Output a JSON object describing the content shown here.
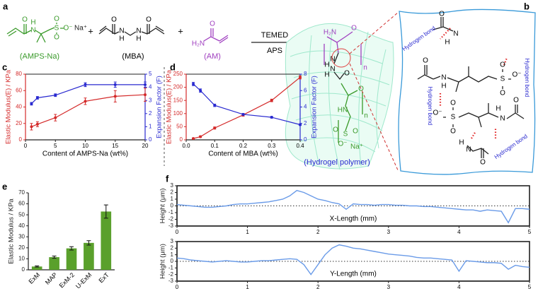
{
  "panel_labels": [
    "a",
    "b",
    "c",
    "d",
    "e",
    "f"
  ],
  "scheme": {
    "amps_atoms": [
      "O",
      "N",
      "H",
      "S",
      "O",
      "O",
      "O⁻",
      "Na⁺"
    ],
    "mba_atoms": [
      "O",
      "N",
      "H",
      "N",
      "H",
      "O"
    ],
    "am_atoms": [
      "H₂N",
      "O"
    ],
    "plus": [
      "+",
      "+"
    ],
    "names": [
      "(AMPS-Na)",
      "(MBA)",
      "(AM)"
    ],
    "catalyst": "TEMED",
    "initiator": "APS",
    "polymer_atoms": [
      "H₂N",
      "O",
      "N",
      "H",
      "N",
      "H",
      "O",
      "n",
      "n",
      "O",
      "HN",
      "S",
      "O",
      "O",
      "O⁻",
      "Na⁺"
    ],
    "polymer_name": "(Hydrogel polymer)"
  },
  "bonding": {
    "atoms": [
      "O",
      "N",
      "H",
      "O",
      "N",
      "H",
      "S",
      "O",
      "O",
      "O⁻",
      "O⁻",
      "S",
      "O",
      "O",
      "H",
      "N",
      "O",
      "H",
      "N",
      "O"
    ],
    "hydrogen_bonds": [
      "Hydrogen bond",
      "Hydrogen bond",
      "Hydrogen bond",
      "Hydrogen bond"
    ]
  },
  "chart_data": [
    {
      "type": "line",
      "xlabel": "Content of AMPS-Na (wt%)",
      "ylabel": "Elastic Modulus(E) / KPa",
      "y2label": "Expansion Factor (F)",
      "xlim": [
        0,
        20
      ],
      "xticks": [
        0,
        5,
        10,
        15,
        20
      ],
      "ylim": [
        0,
        80
      ],
      "yticks": [
        0,
        20,
        40,
        60,
        80
      ],
      "y2lim": [
        0,
        5
      ],
      "y2ticks": [
        0,
        1,
        2,
        3,
        4,
        5
      ],
      "x": [
        1,
        2,
        5,
        10,
        15,
        20
      ],
      "series": [
        {
          "color": "#d42a2a",
          "values": [
            16,
            19,
            27,
            47,
            53,
            55
          ],
          "errors": [
            4,
            3,
            4,
            4,
            7,
            8
          ]
        },
        {
          "color": "#2a2ad0",
          "axis": "y2",
          "values": [
            2.75,
            3.2,
            3.4,
            4.2,
            4.2,
            4.2
          ],
          "errors": [
            0.1,
            0.1,
            0.1,
            0.15,
            0.2,
            0.2
          ]
        }
      ]
    },
    {
      "type": "line",
      "xlabel": "Content of MBA (wt%)",
      "ylabel": "Elastic Modulus(E) / KPa",
      "y2label": "Expansion Factor (F)",
      "xlim": [
        0,
        0.4
      ],
      "xticks": [
        {
          "value": 0,
          "label": "0.0"
        },
        0.1,
        0.2,
        0.3,
        0.4
      ],
      "ylim": [
        0,
        250
      ],
      "yticks": [
        0,
        50,
        100,
        150,
        200,
        250
      ],
      "y2lim": [
        0,
        8
      ],
      "y2ticks": [
        0,
        2,
        4,
        6,
        8
      ],
      "x": [
        0.025,
        0.05,
        0.1,
        0.2,
        0.3,
        0.4
      ],
      "series": [
        {
          "color": "#d42a2a",
          "values": [
            5,
            12,
            45,
            95,
            150,
            238
          ],
          "errors": [
            2,
            3,
            4,
            5,
            5,
            6
          ]
        },
        {
          "color": "#2a2ad0",
          "axis": "y2",
          "values": [
            6.8,
            6.0,
            4.2,
            3.1,
            2.75,
            1.85
          ],
          "errors": [
            0.2,
            0.2,
            0.15,
            0.1,
            0.1,
            0.1
          ]
        }
      ]
    },
    {
      "type": "bar",
      "ylabel": "Elastic Modulus / KPa",
      "categories": [
        "ExM",
        "MAP",
        "ExM-2",
        "U-ExM",
        "ExT"
      ],
      "values": [
        3,
        11.5,
        19.5,
        24.5,
        53
      ],
      "errors": [
        0.5,
        1,
        1.5,
        2,
        6
      ],
      "color": "#5aa02c",
      "ylim": [
        0,
        70
      ],
      "yticks": [
        0,
        10,
        20,
        30,
        40,
        50,
        60,
        70
      ]
    },
    {
      "type": "line",
      "xlabel": "X-Length (mm)",
      "ylabel": "Height (μm)",
      "xlim": [
        0,
        5
      ],
      "xticks": [
        0,
        1,
        2,
        3,
        4,
        5
      ],
      "ylim": [
        -3,
        3
      ],
      "yticks": [
        -3,
        -2,
        -1,
        0,
        1,
        2,
        3
      ],
      "hline": 0,
      "x": [
        0,
        0.1,
        0.2,
        0.3,
        0.4,
        0.5,
        0.6,
        0.7,
        0.8,
        0.9,
        1,
        1.1,
        1.2,
        1.3,
        1.4,
        1.5,
        1.6,
        1.7,
        1.8,
        1.9,
        2,
        2.1,
        2.2,
        2.3,
        2.4,
        2.5,
        2.6,
        2.7,
        2.8,
        2.9,
        3,
        3.1,
        3.2,
        3.3,
        3.4,
        3.5,
        3.6,
        3.7,
        3.8,
        3.9,
        4,
        4.1,
        4.2,
        4.3,
        4.4,
        4.5,
        4.6,
        4.7,
        4.8,
        4.9,
        5
      ],
      "series": [
        {
          "color": "#6a9be8",
          "values": [
            0.2,
            0.1,
            0,
            -0.1,
            -0.2,
            -0.2,
            -0.1,
            0,
            0.2,
            0.3,
            0.3,
            0.4,
            0.5,
            0.6,
            0.8,
            1.0,
            1.5,
            2.3,
            2.0,
            1.5,
            1.0,
            0.8,
            0.5,
            0.3,
            -0.5,
            0.3,
            0.2,
            0.2,
            0.1,
            0.2,
            0.2,
            0.1,
            0.1,
            0,
            0,
            -0.1,
            -0.1,
            -0.2,
            -0.3,
            -0.4,
            -0.5,
            -0.6,
            -0.6,
            -0.8,
            -0.6,
            -0.7,
            -0.8,
            -2.5,
            -0.4,
            -0.4,
            -0.5
          ]
        }
      ]
    },
    {
      "type": "line",
      "xlabel": "Y-Length (mm)",
      "ylabel": "Height (μm)",
      "xlim": [
        0,
        5
      ],
      "xticks": [
        0,
        1,
        2,
        3,
        4,
        5
      ],
      "ylim": [
        -3,
        3
      ],
      "yticks": [
        -3,
        -2,
        -1,
        0,
        1,
        2,
        3
      ],
      "hline": 0,
      "x": [
        0,
        0.1,
        0.2,
        0.3,
        0.4,
        0.5,
        0.6,
        0.7,
        0.8,
        0.9,
        1,
        1.1,
        1.2,
        1.3,
        1.4,
        1.5,
        1.6,
        1.7,
        1.8,
        1.9,
        2,
        2.1,
        2.2,
        2.3,
        2.4,
        2.5,
        2.6,
        2.7,
        2.8,
        2.9,
        3,
        3.1,
        3.2,
        3.3,
        3.4,
        3.5,
        3.6,
        3.7,
        3.8,
        3.9,
        4,
        4.1,
        4.2,
        4.3,
        4.4,
        4.5,
        4.6,
        4.7,
        4.8,
        4.9,
        5
      ],
      "series": [
        {
          "color": "#6a9be8",
          "values": [
            0.5,
            0.4,
            0.2,
            0.1,
            0,
            -0.1,
            0,
            0.1,
            0,
            -0.1,
            -0.1,
            0,
            0.1,
            0.1,
            0.2,
            0.3,
            0.4,
            0.3,
            -0.5,
            -2.0,
            -0.5,
            1.0,
            2.0,
            2.5,
            2.3,
            2.0,
            1.9,
            1.7,
            1.5,
            1.3,
            1.1,
            1.0,
            0.9,
            0.8,
            0.6,
            0.5,
            0.5,
            0.4,
            0.3,
            0.2,
            -1.5,
            0.1,
            0,
            -0.1,
            -0.2,
            -0.2,
            -0.3,
            -1.2,
            -0.6,
            -0.8,
            -0.9
          ]
        }
      ]
    }
  ]
}
